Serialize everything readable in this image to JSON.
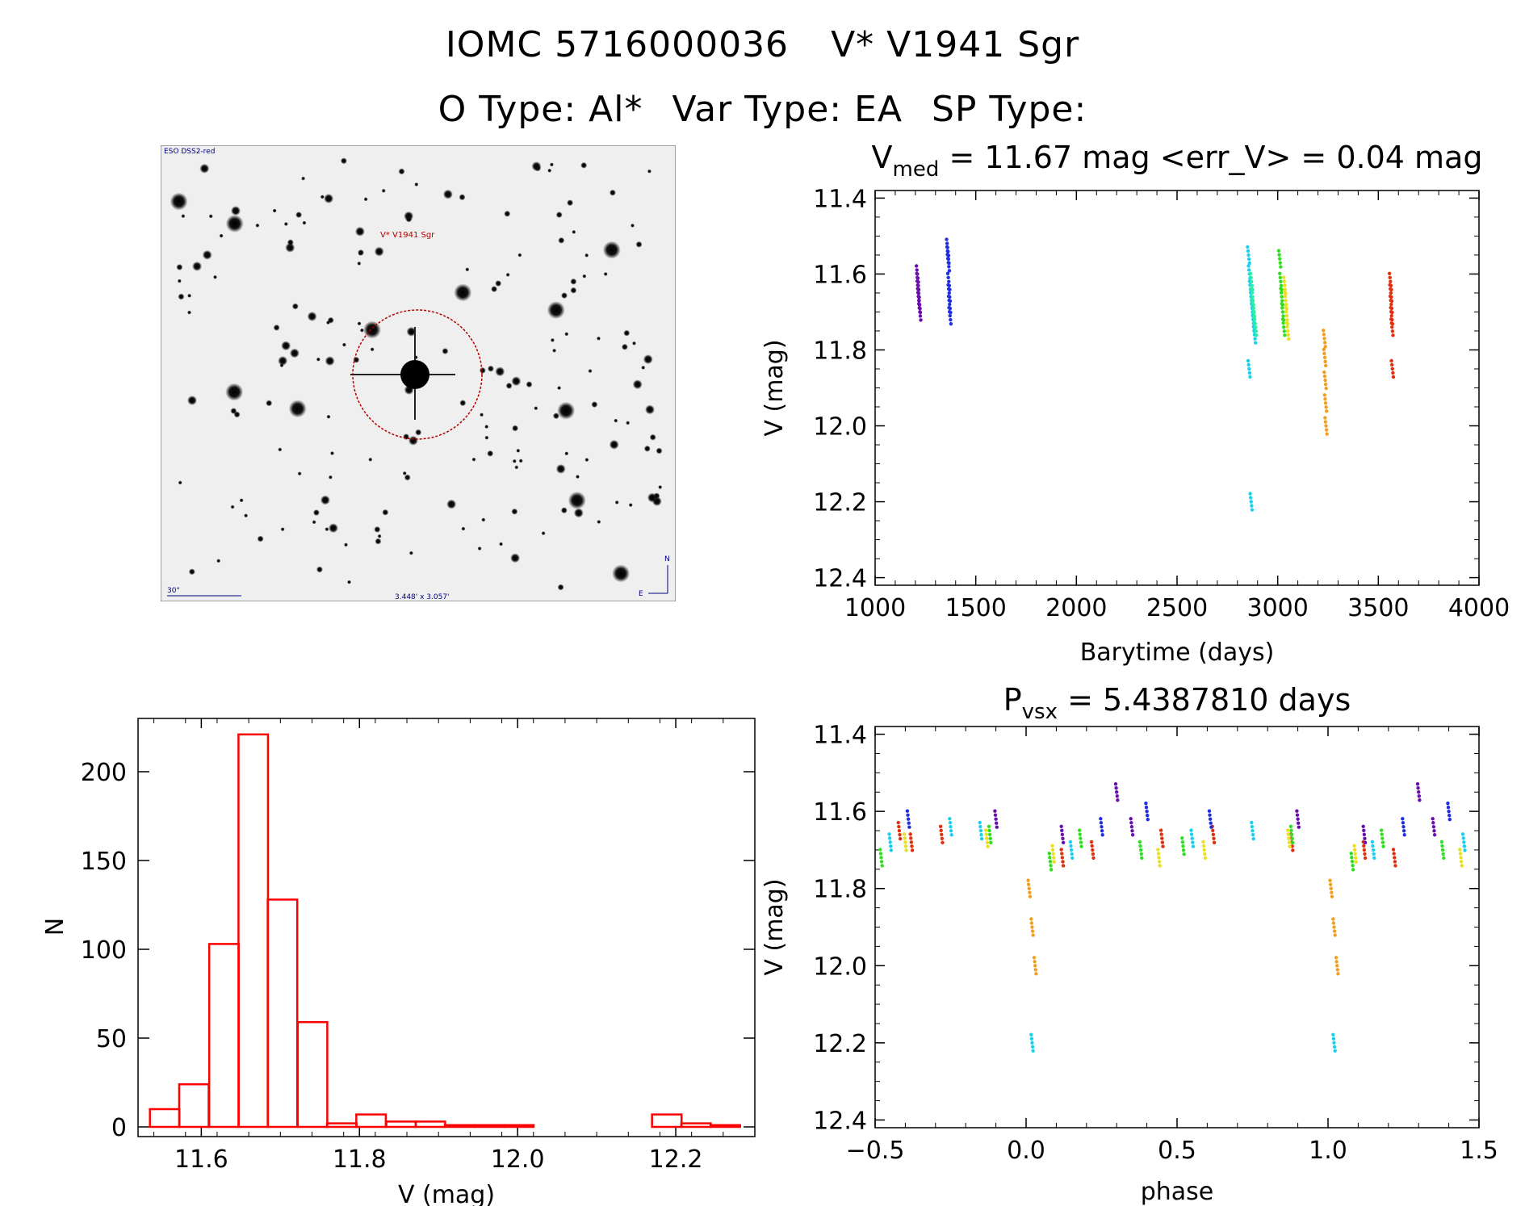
{
  "header": {
    "object_id": "IOMC 5716000036",
    "star_name": "V* V1941 Sgr",
    "otype_label": "O Type: Al*",
    "vartype_label": "Var Type: EA",
    "sptype_label": "SP Type:"
  },
  "finder": {
    "survey_label": "ESO DSS2-red",
    "target_label": "V* V1941 Sgr",
    "scale_label": "30\"",
    "fov_label": "3.448' x 3.057'",
    "compass_n": "N",
    "compass_e": "E"
  },
  "chart_data": [
    {
      "id": "lightcurve",
      "type": "scatter",
      "title_main": "V",
      "title_sub": "med",
      "title_rest": " = 11.67 mag <err_V> = 0.04 mag",
      "xlabel": "Barytime (days)",
      "ylabel": "V (mag)",
      "xlim": [
        1000,
        4000
      ],
      "ylim": [
        12.42,
        11.38
      ],
      "y_reversed": true,
      "xticks": [
        1000,
        1500,
        2000,
        2500,
        3000,
        3500,
        4000
      ],
      "yticks": [
        "11.4",
        "11.6",
        "11.8",
        "12.0",
        "12.2",
        "12.4"
      ],
      "series": [
        {
          "color": "#6a0dad",
          "x": [
            1210,
            1212,
            1214,
            1216,
            1218,
            1220,
            1222
          ],
          "y": [
            11.6,
            11.62,
            11.64,
            11.66,
            11.67,
            11.68,
            11.7
          ]
        },
        {
          "color": "#1f2fe0",
          "x": [
            1360,
            1362,
            1364,
            1366,
            1368,
            1370,
            1372
          ],
          "y": [
            11.53,
            11.55,
            11.57,
            11.62,
            11.65,
            11.68,
            11.71
          ]
        },
        {
          "color": "#1ad0f0",
          "x": [
            2855,
            2860,
            2865,
            2870,
            2875,
            2880,
            2885,
            2858,
            2868
          ],
          "y": [
            11.55,
            11.6,
            11.64,
            11.67,
            11.7,
            11.73,
            11.76,
            11.85,
            12.2
          ]
        },
        {
          "color": "#28f0a0",
          "x": [
            2870,
            2875,
            2880,
            2885,
            2890
          ],
          "y": [
            11.62,
            11.66,
            11.69,
            11.72,
            11.74
          ]
        },
        {
          "color": "#30e020",
          "x": [
            3010,
            3015,
            3020,
            3025,
            3030
          ],
          "y": [
            11.56,
            11.62,
            11.66,
            11.7,
            11.74
          ]
        },
        {
          "color": "#e8e020",
          "x": [
            3035,
            3040,
            3045,
            3050
          ],
          "y": [
            11.63,
            11.67,
            11.71,
            11.75
          ]
        },
        {
          "color": "#f0a020",
          "x": [
            3232,
            3234,
            3236,
            3238,
            3240
          ],
          "y": [
            11.77,
            11.82,
            11.88,
            11.94,
            12.0
          ]
        },
        {
          "color": "#e03010",
          "x": [
            3560,
            3562,
            3564,
            3566,
            3568,
            3570
          ],
          "y": [
            11.62,
            11.65,
            11.68,
            11.71,
            11.74,
            11.85
          ]
        }
      ]
    },
    {
      "id": "histogram",
      "type": "bar",
      "xlabel": "V (mag)",
      "ylabel": "N",
      "xlim": [
        11.52,
        12.3
      ],
      "ylim": [
        0,
        230
      ],
      "xticks": [
        "11.6",
        "11.8",
        "12.0",
        "12.2"
      ],
      "yticks": [
        "0",
        "50",
        "100",
        "150",
        "200"
      ],
      "bin_width": 0.0373,
      "bin_starts": [
        11.535,
        11.572,
        11.61,
        11.647,
        11.684,
        11.722,
        11.759,
        11.796,
        11.834,
        11.871,
        11.908,
        11.946,
        11.983,
        12.02,
        12.058,
        12.095,
        12.132,
        12.17,
        12.207,
        12.244
      ],
      "counts": [
        10,
        24,
        103,
        221,
        128,
        59,
        2,
        7,
        3,
        3,
        1,
        1,
        1,
        0,
        0,
        0,
        0,
        7,
        2,
        1
      ],
      "color": "#ff0000"
    },
    {
      "id": "phased",
      "type": "scatter",
      "title_main": "P",
      "title_sub": "vsx",
      "title_rest": " = 5.4387810 days",
      "xlabel": "phase",
      "ylabel": "V (mag)",
      "xlim": [
        -0.5,
        1.5
      ],
      "ylim": [
        12.42,
        11.38
      ],
      "y_reversed": true,
      "xticks": [
        "−0.5",
        "0.0",
        "0.5",
        "1.0",
        "1.5"
      ],
      "yticks": [
        "11.4",
        "11.6",
        "11.8",
        "12.0",
        "12.2",
        "12.4"
      ],
      "series": [
        {
          "color": "#e03010",
          "x": [
            -0.42,
            -0.38,
            -0.28,
            0.12,
            0.22,
            0.45,
            0.62,
            0.88,
            1.12,
            1.22
          ],
          "y": [
            11.65,
            11.68,
            11.66,
            11.72,
            11.7,
            11.67,
            11.66,
            11.68,
            11.7,
            11.72
          ]
        },
        {
          "color": "#1ad0f0",
          "x": [
            -0.45,
            -0.25,
            -0.15,
            0.02,
            0.15,
            0.55,
            0.75,
            1.02,
            1.15,
            1.45
          ],
          "y": [
            11.68,
            11.64,
            11.65,
            12.2,
            11.7,
            11.67,
            11.65,
            12.2,
            11.7,
            11.68
          ]
        },
        {
          "color": "#30e020",
          "x": [
            -0.48,
            -0.12,
            0.08,
            0.18,
            0.38,
            0.52,
            0.88,
            1.08,
            1.18,
            1.38
          ],
          "y": [
            11.72,
            11.66,
            11.73,
            11.67,
            11.7,
            11.69,
            11.66,
            11.73,
            11.67,
            11.7
          ]
        },
        {
          "color": "#e8e020",
          "x": [
            -0.4,
            -0.13,
            0.09,
            0.44,
            0.59,
            0.87,
            1.09,
            1.44
          ],
          "y": [
            11.68,
            11.67,
            11.71,
            11.72,
            11.7,
            11.67,
            11.71,
            11.72
          ]
        },
        {
          "color": "#f0a020",
          "x": [
            0.01,
            0.02,
            0.03,
            1.01,
            1.02,
            1.03
          ],
          "y": [
            11.8,
            11.9,
            12.0,
            11.8,
            11.9,
            12.0
          ]
        },
        {
          "color": "#6a0dad",
          "x": [
            -0.1,
            0.12,
            0.3,
            0.35,
            0.9,
            1.12,
            1.3,
            1.35
          ],
          "y": [
            11.62,
            11.66,
            11.55,
            11.64,
            11.62,
            11.66,
            11.55,
            11.64
          ]
        },
        {
          "color": "#1f2fe0",
          "x": [
            -0.39,
            0.25,
            0.4,
            0.61,
            1.25,
            1.4
          ],
          "y": [
            11.62,
            11.64,
            11.6,
            11.62,
            11.64,
            11.6
          ]
        }
      ]
    }
  ]
}
